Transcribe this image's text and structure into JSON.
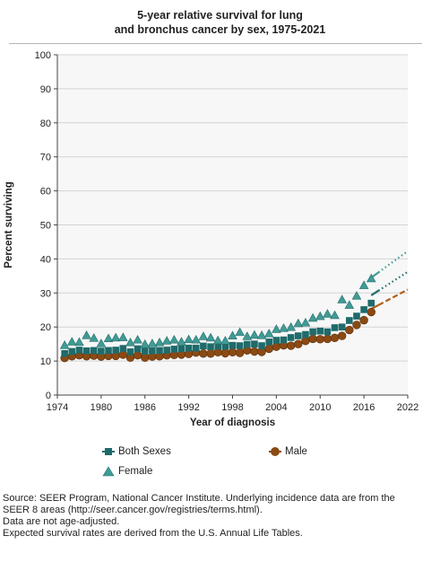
{
  "title": {
    "line1": "5-year relative survival for lung",
    "line2": "and bronchus cancer by sex, 1975-2021"
  },
  "legend": {
    "both": "Both Sexes",
    "male": "Male",
    "female": "Female"
  },
  "source": {
    "line1": "Source: SEER Program, National Cancer Institute. Underlying incidence data are from the",
    "line2": "SEER 8 areas (http://seer.cancer.gov/registries/terms.html).",
    "line3": "Data are not age-adjusted.",
    "line4": "Expected survival rates are derived from the U.S. Annual Life Tables."
  },
  "colors": {
    "both": "#1f6b6b",
    "female": "#3f9b96",
    "male": "#8b4a14",
    "male_line": "#b35e1a"
  },
  "chart_data": {
    "type": "line",
    "xlabel": "Year of diagnosis",
    "ylabel": "Percent surviving",
    "xlim": [
      1974,
      2022
    ],
    "ylim": [
      0,
      100
    ],
    "xticks": [
      1974,
      1980,
      1986,
      1992,
      1998,
      2004,
      2010,
      2016,
      2022
    ],
    "yticks": [
      0,
      10,
      20,
      30,
      40,
      50,
      60,
      70,
      80,
      90,
      100
    ],
    "grid": true,
    "legend_position": "bottom",
    "x": [
      1975,
      1976,
      1977,
      1978,
      1979,
      1980,
      1981,
      1982,
      1983,
      1984,
      1985,
      1986,
      1987,
      1988,
      1989,
      1990,
      1991,
      1992,
      1993,
      1994,
      1995,
      1996,
      1997,
      1998,
      1999,
      2000,
      2001,
      2002,
      2003,
      2004,
      2005,
      2006,
      2007,
      2008,
      2009,
      2010,
      2011,
      2012,
      2013,
      2014,
      2015,
      2016,
      2017
    ],
    "series": [
      {
        "name": "Both Sexes",
        "marker": "square",
        "values": [
          12.2,
          12.8,
          13.2,
          13.0,
          13.1,
          12.9,
          13.1,
          13.2,
          13.7,
          12.7,
          13.6,
          12.9,
          13.0,
          13.1,
          13.2,
          13.5,
          13.6,
          13.8,
          13.8,
          14.4,
          14.2,
          14.4,
          14.3,
          14.6,
          14.5,
          14.9,
          15.0,
          14.5,
          15.6,
          16.1,
          16.2,
          16.9,
          17.4,
          17.8,
          18.6,
          18.8,
          18.6,
          19.8,
          20.0,
          21.9,
          23.2,
          25.1,
          27.0
        ],
        "fit": {
          "x": [
            2017,
            2022
          ],
          "y": [
            29.3,
            36.2
          ],
          "projected_from": 2018
        }
      },
      {
        "name": "Male",
        "marker": "circle",
        "values": [
          10.9,
          11.4,
          11.7,
          11.4,
          11.6,
          11.3,
          11.5,
          11.5,
          11.9,
          11.0,
          11.7,
          11.0,
          11.3,
          11.4,
          11.7,
          11.8,
          11.9,
          12.1,
          12.5,
          12.2,
          12.2,
          12.6,
          12.3,
          12.6,
          12.4,
          13.1,
          12.8,
          12.7,
          13.6,
          14.2,
          14.6,
          14.5,
          15.0,
          15.9,
          16.5,
          16.4,
          16.5,
          16.8,
          17.4,
          19.1,
          20.6,
          22.0,
          24.4
        ],
        "fit": {
          "x": [
            2017,
            2022
          ],
          "y": [
            25.3,
            31.0
          ],
          "projected_from": 2018
        }
      },
      {
        "name": "Female",
        "marker": "triangle",
        "values": [
          14.6,
          15.6,
          15.5,
          17.5,
          16.7,
          15.1,
          16.6,
          16.8,
          16.9,
          15.4,
          16.2,
          14.9,
          15.1,
          15.4,
          15.9,
          16.2,
          15.6,
          16.3,
          16.2,
          17.2,
          16.8,
          16.0,
          15.9,
          17.4,
          18.4,
          17.2,
          17.6,
          17.5,
          18.0,
          19.3,
          19.6,
          19.9,
          21.0,
          21.2,
          22.6,
          23.1,
          23.8,
          23.4,
          28.0,
          26.4,
          29.1,
          32.2,
          34.2
        ],
        "fit": {
          "x": [
            2017,
            2022
          ],
          "y": [
            34.5,
            42.3
          ],
          "projected_from": 2018
        }
      }
    ]
  }
}
